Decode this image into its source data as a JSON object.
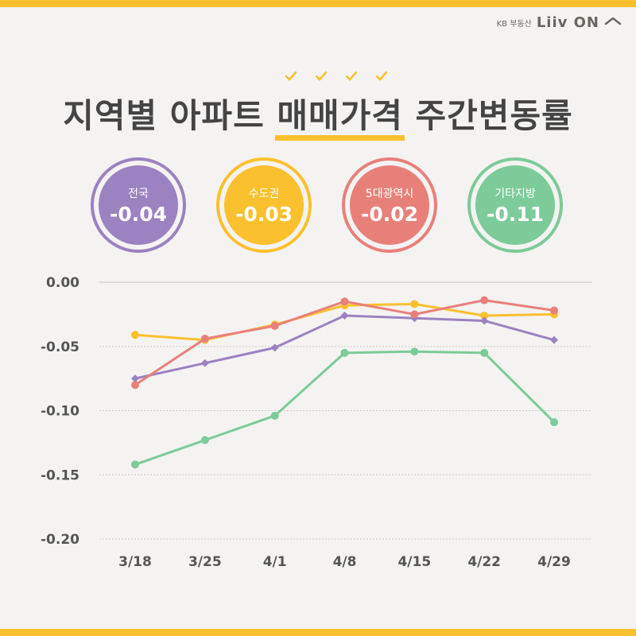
{
  "brand": {
    "prefix": "KB 부동산",
    "logo": "Liiv ON"
  },
  "title": {
    "pre": "지역별 아파트 ",
    "highlight": "매매가격",
    "post": " 주간변동률"
  },
  "colors": {
    "accent": "#fbc02d",
    "purple": "#9b82c0",
    "yellow": "#fbc02d",
    "red": "#e8807a",
    "green": "#7ccb98"
  },
  "badges": [
    {
      "label": "전국",
      "value": "-0.04",
      "color": "#9b82c0"
    },
    {
      "label": "수도권",
      "value": "-0.03",
      "color": "#fbc02d"
    },
    {
      "label": "5대광역시",
      "value": "-0.02",
      "color": "#e8807a"
    },
    {
      "label": "기타지방",
      "value": "-0.11",
      "color": "#7ccb98"
    }
  ],
  "chart_data": {
    "type": "line",
    "categories": [
      "3/18",
      "3/25",
      "4/1",
      "4/8",
      "4/15",
      "4/22",
      "4/29"
    ],
    "ylim": [
      -0.2,
      0.0
    ],
    "yticks": [
      "0.00",
      "-0.05",
      "-0.10",
      "-0.15",
      "-0.20"
    ],
    "grid": true,
    "series": [
      {
        "color": "#fbc02d",
        "marker": "circle",
        "values": [
          -0.041,
          -0.045,
          -0.033,
          -0.018,
          -0.017,
          -0.026,
          -0.025
        ]
      },
      {
        "color": "#9b82c0",
        "marker": "diamond",
        "values": [
          -0.075,
          -0.063,
          -0.051,
          -0.026,
          -0.028,
          -0.03,
          -0.045
        ]
      },
      {
        "color": "#e8807a",
        "marker": "circle",
        "values": [
          -0.08,
          -0.044,
          -0.034,
          -0.015,
          -0.025,
          -0.014,
          -0.022
        ]
      },
      {
        "color": "#7ccb98",
        "marker": "circle",
        "values": [
          -0.142,
          -0.123,
          -0.104,
          -0.055,
          -0.054,
          -0.055,
          -0.109
        ]
      }
    ]
  }
}
